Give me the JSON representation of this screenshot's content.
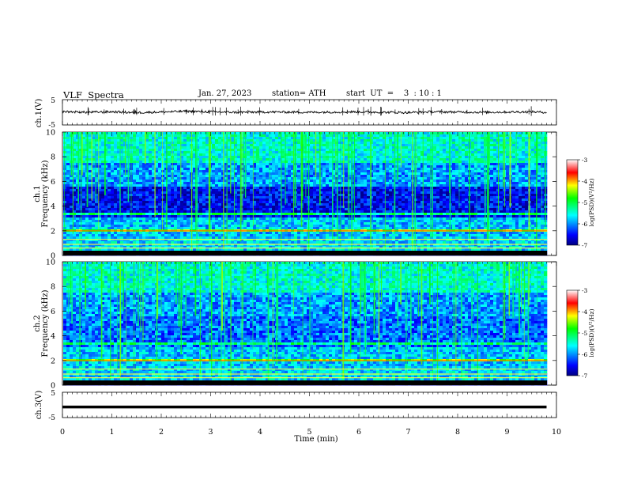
{
  "header": {
    "title": "VLF  Spectra",
    "date": "Jan. 27, 2023",
    "station": "station= ATH",
    "start": "start  UT  =    3  : 10 : 1"
  },
  "chart_data": [
    {
      "type": "line",
      "panel": "ch1-waveform",
      "ylabel": "ch.1(V)",
      "ylim": [
        -5,
        5
      ],
      "yticks": [
        "5",
        "-5"
      ],
      "x": [
        0,
        0.5,
        1,
        1.5,
        2,
        2.5,
        3,
        3.5,
        4,
        4.5,
        5,
        5.5,
        6,
        6.5,
        7,
        7.5,
        8,
        8.5,
        9,
        9.5,
        9.8
      ],
      "y": [
        0.3,
        0.0,
        0.2,
        -0.1,
        0.1,
        0.4,
        0.2,
        0.0,
        0.1,
        0.1,
        0.0,
        0.1,
        0.2,
        0.0,
        -0.1,
        0.2,
        0.1,
        0.0,
        0.1,
        0.2,
        0.0
      ]
    },
    {
      "type": "heatmap",
      "panel": "ch1-spectrogram",
      "ylabel_top": "ch.1",
      "ylabel": "Frequency  (kHz)",
      "ylim": [
        0,
        10
      ],
      "yticks": [
        "0",
        "2",
        "4",
        "6",
        "8",
        "10"
      ],
      "colorbar": {
        "label": "log(PSD)(V²/Hz)",
        "ticks": [
          "-3",
          "-4",
          "-5",
          "-6",
          "-7"
        ],
        "range": [
          -7,
          -3
        ]
      }
    },
    {
      "type": "heatmap",
      "panel": "ch2-spectrogram",
      "ylabel_top": "ch.2",
      "ylabel": "Frequency  (kHz)",
      "ylim": [
        0,
        10
      ],
      "yticks": [
        "0",
        "2",
        "4",
        "6",
        "8",
        "10"
      ],
      "colorbar": {
        "label": "log(PSD)(V²/Hz)",
        "ticks": [
          "-3",
          "-4",
          "-5",
          "-6",
          "-7"
        ],
        "range": [
          -7,
          -3
        ]
      }
    },
    {
      "type": "line",
      "panel": "ch3-waveform",
      "ylabel": "ch.3(V)",
      "ylim": [
        -5,
        5
      ],
      "yticks": [
        "5",
        "-5"
      ],
      "x": [
        0,
        9.8
      ],
      "y": [
        -0.8,
        -0.8
      ]
    }
  ],
  "xaxis": {
    "label": "Time  (min)",
    "range": [
      0,
      10
    ],
    "ticks": [
      "0",
      "1",
      "2",
      "3",
      "4",
      "5",
      "6",
      "7",
      "8",
      "9",
      "10"
    ]
  }
}
